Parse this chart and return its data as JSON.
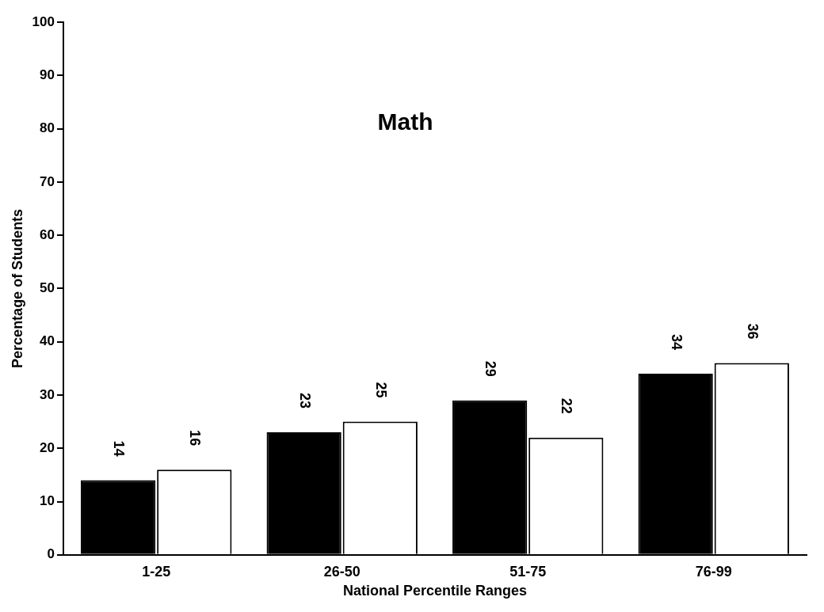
{
  "chart_data": {
    "type": "bar",
    "title": "Math",
    "xlabel": "National Percentile Ranges",
    "ylabel": "Percentage of Students",
    "categories": [
      "1-25",
      "26-50",
      "51-75",
      "76-99"
    ],
    "series": [
      {
        "color": "#000000",
        "values": [
          14,
          23,
          29,
          34
        ]
      },
      {
        "color": "#ffffff",
        "values": [
          16,
          25,
          22,
          36
        ]
      }
    ],
    "ylim": [
      0,
      100
    ],
    "yticks": [
      0,
      10,
      20,
      30,
      40,
      50,
      60,
      70,
      80,
      90,
      100
    ],
    "grid": false,
    "legend": false,
    "data_labels": true
  }
}
